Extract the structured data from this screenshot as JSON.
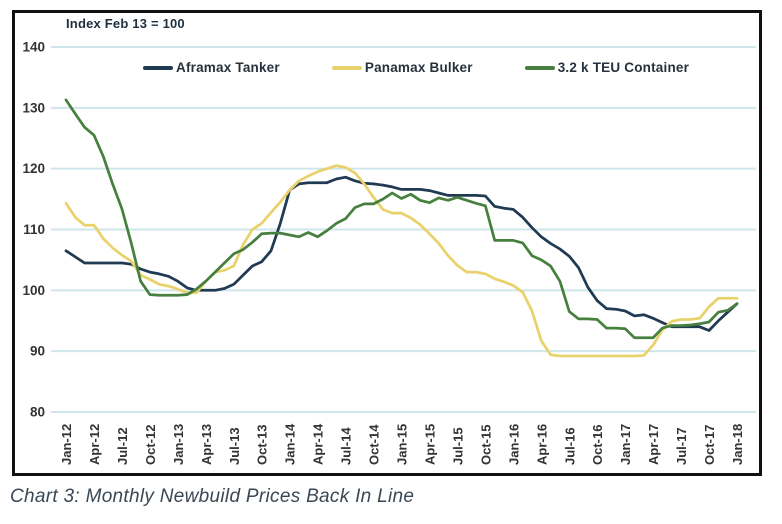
{
  "chart": {
    "note": "Index Feb 13 = 100",
    "caption": "Chart 3: Monthly Newbuild Prices Back In Line",
    "colors": {
      "grid": "#CEE6EC",
      "frame_border": "#111111",
      "axis_text": "#333333",
      "note_text": "#1E2F3E",
      "caption_text": "#3A4754",
      "background": "#FFFFFF"
    }
  },
  "chart_data": {
    "type": "line",
    "title": "Index Feb 13 = 100",
    "x_unit": "month",
    "x_start": "Jan-12",
    "x_end": "Jan-18",
    "points_per_series": 73,
    "x_tick_labels": [
      "Jan-12",
      "Apr-12",
      "Jul-12",
      "Oct-12",
      "Jan-13",
      "Apr-13",
      "Jul-13",
      "Oct-13",
      "Jan-14",
      "Apr-14",
      "Jul-14",
      "Oct-14",
      "Jan-15",
      "Apr-15",
      "Jul-15",
      "Oct-15",
      "Jan-16",
      "Apr-16",
      "Jul-16",
      "Oct-16",
      "Jan-17",
      "Apr-17",
      "Jul-17",
      "Oct-17",
      "Jan-18"
    ],
    "x_tick_every_n_points": 3,
    "y_ticks": [
      140,
      130,
      120,
      110,
      100,
      90,
      80
    ],
    "ylim": [
      80,
      140
    ],
    "grid": "horizontal",
    "legend_position": "top",
    "series": [
      {
        "name": "Aframax Tanker",
        "color": "#1F3A52",
        "values": [
          106.5,
          105.5,
          104.5,
          104.5,
          104.5,
          104.5,
          104.5,
          104.3,
          103.5,
          103,
          102.7,
          102.3,
          101.5,
          100.4,
          100,
          100,
          100,
          100.3,
          101,
          102.5,
          104,
          104.7,
          106.5,
          111,
          116.5,
          117.5,
          117.7,
          117.7,
          117.7,
          118.3,
          118.6,
          118,
          117.6,
          117.5,
          117.3,
          117,
          116.6,
          116.6,
          116.6,
          116.4,
          116,
          115.6,
          115.6,
          115.6,
          115.6,
          115.5,
          113.8,
          113.5,
          113.3,
          112,
          110.3,
          108.8,
          107.7,
          106.8,
          105.6,
          103.7,
          100.5,
          98.3,
          97,
          96.9,
          96.6,
          95.8,
          96,
          95.4,
          94.7,
          94,
          94,
          94,
          94,
          93.4,
          95,
          96.4,
          97.8
        ]
      },
      {
        "name": "Panamax Bulker",
        "color": "#E9D26C",
        "values": [
          114.3,
          112,
          110.7,
          110.7,
          108.5,
          107,
          105.8,
          104.8,
          102.5,
          101.8,
          101,
          100.7,
          100.2,
          99.6,
          99.6,
          101.5,
          103,
          103.3,
          104,
          107.5,
          110,
          111,
          112.8,
          114.5,
          116.5,
          118,
          118.8,
          119.5,
          120,
          120.5,
          120.2,
          119.3,
          117.5,
          115.3,
          113.3,
          112.7,
          112.7,
          111.9,
          110.8,
          109.3,
          107.7,
          105.7,
          104.1,
          103,
          103,
          102.7,
          101.9,
          101.4,
          100.8,
          99.7,
          96.6,
          91.7,
          89.4,
          89.2,
          89.2,
          89.2,
          89.2,
          89.2,
          89.2,
          89.2,
          89.2,
          89.2,
          89.3,
          91,
          93.5,
          94.9,
          95.2,
          95.2,
          95.4,
          97.3,
          98.7,
          98.7,
          98.7
        ]
      },
      {
        "name": "3.2 k TEU Container",
        "color": "#47803E",
        "values": [
          131.3,
          129,
          126.8,
          125.5,
          122,
          117.5,
          113.4,
          107.8,
          101.5,
          99.3,
          99.2,
          99.2,
          99.2,
          99.3,
          100.2,
          101.5,
          103,
          104.5,
          106,
          106.7,
          107.9,
          109.3,
          109.4,
          109.4,
          109.1,
          108.8,
          109.5,
          108.8,
          109.8,
          111,
          111.8,
          113.6,
          114.2,
          114.2,
          115,
          116,
          115.1,
          115.8,
          114.8,
          114.4,
          115.2,
          114.8,
          115.3,
          114.8,
          114.3,
          113.9,
          108.2,
          108.2,
          108.2,
          107.8,
          105.7,
          105,
          104,
          101.5,
          96.5,
          95.3,
          95.3,
          95.2,
          93.8,
          93.8,
          93.7,
          92.2,
          92.2,
          92.2,
          93.8,
          94.2,
          94.2,
          94.3,
          94.5,
          94.8,
          96.4,
          96.7,
          97.8
        ]
      }
    ]
  }
}
